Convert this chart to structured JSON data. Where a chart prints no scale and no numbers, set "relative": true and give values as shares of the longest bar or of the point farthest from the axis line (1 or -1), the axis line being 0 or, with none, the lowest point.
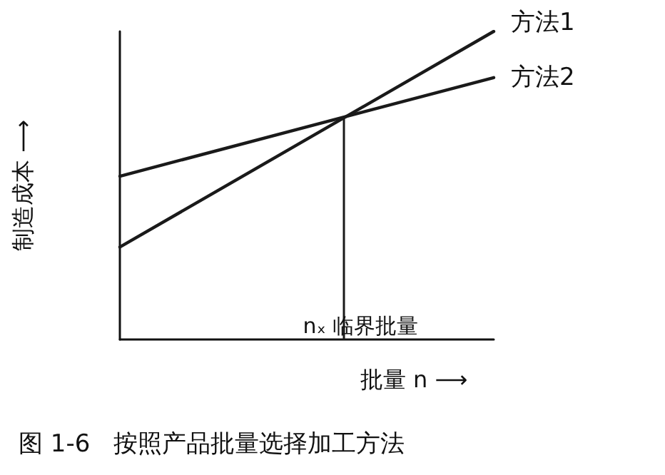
{
  "chart_data": {
    "type": "line",
    "relative": true,
    "title": "图 1-6   按照产品批量选择加工方法",
    "xlabel": "批量 n ⟶",
    "ylabel": "制造成本 ⟶",
    "grid": false,
    "legend": false,
    "marker": "none",
    "line_style": "solid",
    "categories": [
      null,
      null,
      null,
      null,
      null,
      null
    ],
    "series": [
      {
        "name": "方法1",
        "color": "#1a1a1a",
        "values": [
          0.3,
          null,
          null,
          null,
          null,
          1
        ]
      },
      {
        "name": "方法2",
        "color": "#1a1a1a",
        "values": [
          0.53,
          null,
          null,
          null,
          null,
          0.85
        ]
      }
    ],
    "ref_lines": [
      {
        "axis": "x",
        "label": "nₓ 临界批量",
        "color": "#1a1a1a",
        "line_style": "solid"
      }
    ]
  }
}
